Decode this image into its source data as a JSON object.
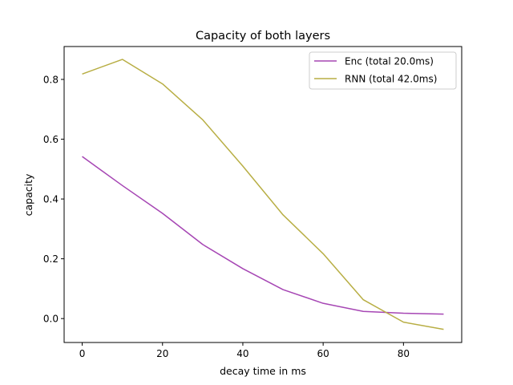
{
  "chart_data": {
    "type": "line",
    "title": "Capacity of both layers",
    "xlabel": "decay time in ms",
    "ylabel": "capacity",
    "xlim": [
      -4.5,
      94.5
    ],
    "ylim": [
      -0.08,
      0.91
    ],
    "xticks": [
      0,
      20,
      40,
      60,
      80
    ],
    "yticks": [
      0.0,
      0.2,
      0.4,
      0.6,
      0.8
    ],
    "xtick_labels": [
      "0",
      "20",
      "40",
      "60",
      "80"
    ],
    "ytick_labels": [
      "0.0",
      "0.2",
      "0.4",
      "0.6",
      "0.8"
    ],
    "grid": false,
    "legend_position": "top-right",
    "x": [
      0,
      10,
      20,
      30,
      40,
      50,
      60,
      70,
      80,
      90
    ],
    "series": [
      {
        "name": "Enc (total 20.0ms)",
        "color": "#a646b4",
        "values": [
          0.542,
          0.445,
          0.352,
          0.248,
          0.167,
          0.097,
          0.051,
          0.024,
          0.018,
          0.015
        ]
      },
      {
        "name": "RNN (total 42.0ms)",
        "color": "#b8ae44",
        "values": [
          0.818,
          0.867,
          0.785,
          0.665,
          0.51,
          0.347,
          0.217,
          0.063,
          -0.012,
          -0.036
        ]
      }
    ]
  }
}
